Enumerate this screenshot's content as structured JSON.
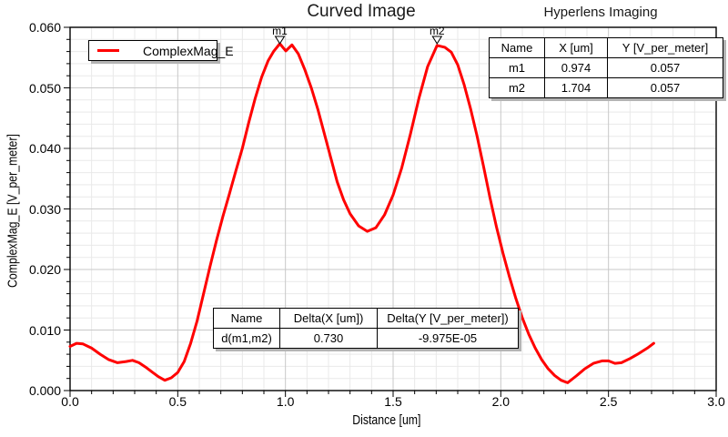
{
  "titles": {
    "main": "Curved Image",
    "right": "Hyperlens Imaging"
  },
  "legend": {
    "series_label": "ComplexMag_E"
  },
  "axes": {
    "x": {
      "label": "Distance [um]",
      "tick_labels": [
        "0.0",
        "0.5",
        "1.0",
        "1.5",
        "2.0",
        "2.5",
        "3.0"
      ],
      "min": 0,
      "max": 3,
      "major_step": 0.5,
      "minor_step": 0.1
    },
    "y": {
      "label": "ComplexMag_E [V_per_meter]",
      "tick_labels": [
        "0.000",
        "0.010",
        "0.020",
        "0.030",
        "0.040",
        "0.050",
        "0.060"
      ],
      "min": 0,
      "max": 0.06,
      "major_step": 0.01,
      "minor_step": 0.002
    }
  },
  "markers": [
    {
      "name": "m1",
      "x": 0.974,
      "y": 0.057
    },
    {
      "name": "m2",
      "x": 1.704,
      "y": 0.057
    }
  ],
  "marker_table": {
    "headers": [
      "Name",
      "X [um]",
      "Y [V_per_meter]"
    ],
    "rows": [
      [
        "m1",
        "0.974",
        "0.057"
      ],
      [
        "m2",
        "1.704",
        "0.057"
      ]
    ]
  },
  "delta_table": {
    "headers": [
      "Name",
      "Delta(X [um])",
      "Delta(Y [V_per_meter])"
    ],
    "rows": [
      [
        "d(m1,m2)",
        "0.730",
        "-9.975E-05"
      ]
    ]
  },
  "colors": {
    "curve": "#ff0000",
    "axis": "#000000",
    "grid_minor": "#e9e9e9",
    "grid_major": "#c8c8c8",
    "shadow": "#b4b4b4",
    "marker_fill": "#ffffff"
  },
  "chart_data": {
    "type": "line",
    "title": "Curved Image",
    "subtitle": "Hyperlens Imaging",
    "xlabel": "Distance [um]",
    "ylabel": "ComplexMag_E [V_per_meter]",
    "xlim": [
      0,
      3
    ],
    "ylim": [
      0,
      0.06
    ],
    "grid": true,
    "legend_position": "top-left",
    "series": [
      {
        "name": "ComplexMag_E",
        "color": "#ff0000",
        "points": [
          [
            0.0,
            0.0073
          ],
          [
            0.03,
            0.0078
          ],
          [
            0.06,
            0.0077
          ],
          [
            0.1,
            0.007
          ],
          [
            0.14,
            0.006
          ],
          [
            0.18,
            0.0051
          ],
          [
            0.22,
            0.0046
          ],
          [
            0.26,
            0.0048
          ],
          [
            0.29,
            0.005
          ],
          [
            0.32,
            0.0046
          ],
          [
            0.35,
            0.0039
          ],
          [
            0.38,
            0.0031
          ],
          [
            0.41,
            0.0023
          ],
          [
            0.44,
            0.0017
          ],
          [
            0.47,
            0.0021
          ],
          [
            0.5,
            0.003
          ],
          [
            0.53,
            0.0048
          ],
          [
            0.56,
            0.0078
          ],
          [
            0.59,
            0.0115
          ],
          [
            0.62,
            0.016
          ],
          [
            0.65,
            0.0205
          ],
          [
            0.68,
            0.0248
          ],
          [
            0.71,
            0.0288
          ],
          [
            0.74,
            0.0325
          ],
          [
            0.77,
            0.0363
          ],
          [
            0.8,
            0.04
          ],
          [
            0.83,
            0.0443
          ],
          [
            0.86,
            0.0483
          ],
          [
            0.89,
            0.0518
          ],
          [
            0.92,
            0.0545
          ],
          [
            0.945,
            0.056
          ],
          [
            0.974,
            0.0573
          ],
          [
            1.002,
            0.0561
          ],
          [
            1.03,
            0.0571
          ],
          [
            1.06,
            0.0556
          ],
          [
            1.09,
            0.053
          ],
          [
            1.12,
            0.05
          ],
          [
            1.15,
            0.0465
          ],
          [
            1.18,
            0.0425
          ],
          [
            1.21,
            0.0385
          ],
          [
            1.24,
            0.0345
          ],
          [
            1.27,
            0.0315
          ],
          [
            1.3,
            0.0292
          ],
          [
            1.34,
            0.0272
          ],
          [
            1.38,
            0.0263
          ],
          [
            1.42,
            0.0269
          ],
          [
            1.46,
            0.029
          ],
          [
            1.5,
            0.0323
          ],
          [
            1.54,
            0.0368
          ],
          [
            1.58,
            0.0423
          ],
          [
            1.62,
            0.0483
          ],
          [
            1.66,
            0.0535
          ],
          [
            1.704,
            0.057
          ],
          [
            1.74,
            0.0567
          ],
          [
            1.77,
            0.0559
          ],
          [
            1.8,
            0.0538
          ],
          [
            1.83,
            0.0505
          ],
          [
            1.86,
            0.0465
          ],
          [
            1.89,
            0.042
          ],
          [
            1.92,
            0.037
          ],
          [
            1.95,
            0.0318
          ],
          [
            1.98,
            0.027
          ],
          [
            2.01,
            0.0227
          ],
          [
            2.04,
            0.0188
          ],
          [
            2.07,
            0.0152
          ],
          [
            2.1,
            0.012
          ],
          [
            2.13,
            0.0093
          ],
          [
            2.16,
            0.007
          ],
          [
            2.19,
            0.0051
          ],
          [
            2.22,
            0.0036
          ],
          [
            2.25,
            0.0025
          ],
          [
            2.28,
            0.0017
          ],
          [
            2.31,
            0.0013
          ],
          [
            2.35,
            0.0024
          ],
          [
            2.39,
            0.0036
          ],
          [
            2.43,
            0.0045
          ],
          [
            2.47,
            0.0049
          ],
          [
            2.5,
            0.0049
          ],
          [
            2.53,
            0.0045
          ],
          [
            2.56,
            0.0046
          ],
          [
            2.6,
            0.0053
          ],
          [
            2.64,
            0.0061
          ],
          [
            2.68,
            0.007
          ],
          [
            2.71,
            0.0078
          ]
        ]
      }
    ],
    "markers": [
      {
        "name": "m1",
        "x": 0.974,
        "y": 0.057
      },
      {
        "name": "m2",
        "x": 1.704,
        "y": 0.057
      }
    ]
  }
}
